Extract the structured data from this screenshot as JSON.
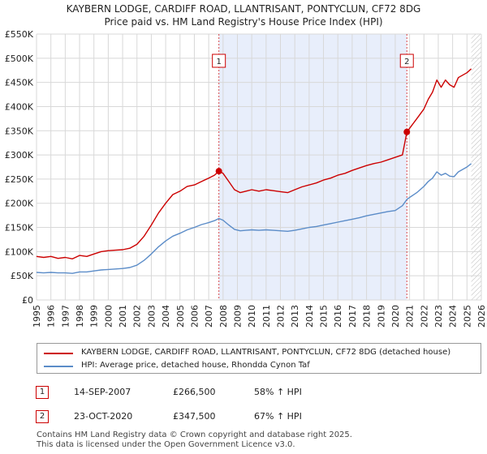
{
  "chart_data": {
    "type": "line",
    "title": "KAYBERN LODGE, CARDIFF ROAD, LLANTRISANT, PONTYCLUN, CF72 8DG",
    "subtitle": "Price paid vs. HM Land Registry's House Price Index (HPI)",
    "xlabel": "",
    "ylabel": "",
    "xlim": [
      1995,
      2026
    ],
    "ylim": [
      0,
      550000
    ],
    "x_ticks": [
      "1995",
      "1996",
      "1997",
      "1998",
      "1999",
      "2000",
      "2001",
      "2002",
      "2003",
      "2004",
      "2005",
      "2006",
      "2007",
      "2008",
      "2009",
      "2010",
      "2011",
      "2012",
      "2013",
      "2014",
      "2015",
      "2016",
      "2017",
      "2018",
      "2019",
      "2020",
      "2021",
      "2022",
      "2023",
      "2024",
      "2025",
      "2026"
    ],
    "y_ticks": [
      {
        "value": 0,
        "label": "£0"
      },
      {
        "value": 50000,
        "label": "£50K"
      },
      {
        "value": 100000,
        "label": "£100K"
      },
      {
        "value": 150000,
        "label": "£150K"
      },
      {
        "value": 200000,
        "label": "£200K"
      },
      {
        "value": 250000,
        "label": "£250K"
      },
      {
        "value": 300000,
        "label": "£300K"
      },
      {
        "value": 350000,
        "label": "£350K"
      },
      {
        "value": 400000,
        "label": "£400K"
      },
      {
        "value": 450000,
        "label": "£450K"
      },
      {
        "value": 500000,
        "label": "£500K"
      },
      {
        "value": 550000,
        "label": "£550K"
      }
    ],
    "grid": true,
    "shaded_period": [
      2007.71,
      2020.81
    ],
    "future_from": 2025.3,
    "series": [
      {
        "name": "KAYBERN LODGE, CARDIFF ROAD, LLANTRISANT, PONTYCLUN, CF72 8DG (detached house)",
        "color": "#cc0000",
        "x": [
          1995,
          1995.5,
          1996,
          1996.5,
          1997,
          1997.5,
          1998,
          1998.5,
          1999,
          1999.5,
          2000,
          2000.5,
          2001,
          2001.5,
          2002,
          2002.5,
          2003,
          2003.5,
          2004,
          2004.5,
          2005,
          2005.5,
          2006,
          2006.5,
          2007,
          2007.4,
          2007.71,
          2008,
          2008.4,
          2008.8,
          2009.2,
          2009.6,
          2010,
          2010.5,
          2011,
          2011.5,
          2012,
          2012.5,
          2013,
          2013.5,
          2014,
          2014.5,
          2015,
          2015.5,
          2016,
          2016.5,
          2017,
          2017.5,
          2018,
          2018.5,
          2019,
          2019.5,
          2020,
          2020.5,
          2020.81,
          2021,
          2021.5,
          2022,
          2022.3,
          2022.6,
          2022.9,
          2023.2,
          2023.5,
          2023.8,
          2024.1,
          2024.4,
          2024.7,
          2025,
          2025.3
        ],
        "values": [
          90000,
          88000,
          90000,
          86000,
          88000,
          85000,
          92000,
          90000,
          95000,
          100000,
          102000,
          103000,
          104000,
          107000,
          115000,
          132000,
          155000,
          180000,
          200000,
          218000,
          225000,
          235000,
          238000,
          245000,
          252000,
          258000,
          266500,
          262000,
          245000,
          228000,
          222000,
          225000,
          228000,
          225000,
          228000,
          226000,
          224000,
          222000,
          228000,
          234000,
          238000,
          242000,
          248000,
          252000,
          258000,
          262000,
          268000,
          273000,
          278000,
          282000,
          285000,
          290000,
          295000,
          300000,
          347500,
          355000,
          375000,
          395000,
          415000,
          430000,
          455000,
          440000,
          455000,
          445000,
          440000,
          460000,
          465000,
          470000,
          478000
        ]
      },
      {
        "name": "HPI: Average price, detached house, Rhondda Cynon Taf",
        "color": "#5b8cc8",
        "x": [
          1995,
          1995.5,
          1996,
          1996.5,
          1997,
          1997.5,
          1998,
          1998.5,
          1999,
          1999.5,
          2000,
          2000.5,
          2001,
          2001.5,
          2002,
          2002.5,
          2003,
          2003.5,
          2004,
          2004.5,
          2005,
          2005.5,
          2006,
          2006.5,
          2007,
          2007.4,
          2007.71,
          2008,
          2008.4,
          2008.8,
          2009.2,
          2009.6,
          2010,
          2010.5,
          2011,
          2011.5,
          2012,
          2012.5,
          2013,
          2013.5,
          2014,
          2014.5,
          2015,
          2015.5,
          2016,
          2016.5,
          2017,
          2017.5,
          2018,
          2018.5,
          2019,
          2019.5,
          2020,
          2020.5,
          2020.81,
          2021,
          2021.5,
          2022,
          2022.3,
          2022.6,
          2022.9,
          2023.2,
          2023.5,
          2023.8,
          2024.1,
          2024.4,
          2024.7,
          2025,
          2025.3
        ],
        "values": [
          57000,
          56000,
          57000,
          56000,
          56000,
          55000,
          58000,
          58000,
          60000,
          62000,
          63000,
          64000,
          65000,
          67000,
          72000,
          82000,
          95000,
          110000,
          122000,
          132000,
          138000,
          145000,
          150000,
          156000,
          160000,
          164000,
          168500,
          165000,
          155000,
          146000,
          143000,
          144000,
          145000,
          144000,
          145000,
          144000,
          143000,
          142000,
          144000,
          147000,
          150000,
          152000,
          155000,
          158000,
          161000,
          164000,
          167000,
          170000,
          174000,
          177000,
          180000,
          183000,
          185000,
          195000,
          208000,
          212000,
          222000,
          235000,
          245000,
          252000,
          265000,
          258000,
          262000,
          256000,
          255000,
          265000,
          270000,
          275000,
          282000
        ]
      }
    ],
    "markers": [
      {
        "label": "1",
        "x": 2007.71,
        "value": 266500
      },
      {
        "label": "2",
        "x": 2020.81,
        "value": 347500
      }
    ]
  },
  "legend": {
    "red_label": "KAYBERN LODGE, CARDIFF ROAD, LLANTRISANT, PONTYCLUN, CF72 8DG (detached house)",
    "blue_label": "HPI: Average price, detached house, Rhondda Cynon Taf"
  },
  "transactions": [
    {
      "num": "1",
      "date": "14-SEP-2007",
      "price": "£266,500",
      "hpi": "58% ↑ HPI"
    },
    {
      "num": "2",
      "date": "23-OCT-2020",
      "price": "£347,500",
      "hpi": "67% ↑ HPI"
    }
  ],
  "footer": {
    "line1": "Contains HM Land Registry data © Crown copyright and database right 2025.",
    "line2": "This data is licensed under the Open Government Licence v3.0."
  },
  "colors": {
    "red": "#cc0000",
    "blue": "#5b8cc8",
    "shade": "#e8eefb",
    "grid": "#d8d8d8"
  }
}
